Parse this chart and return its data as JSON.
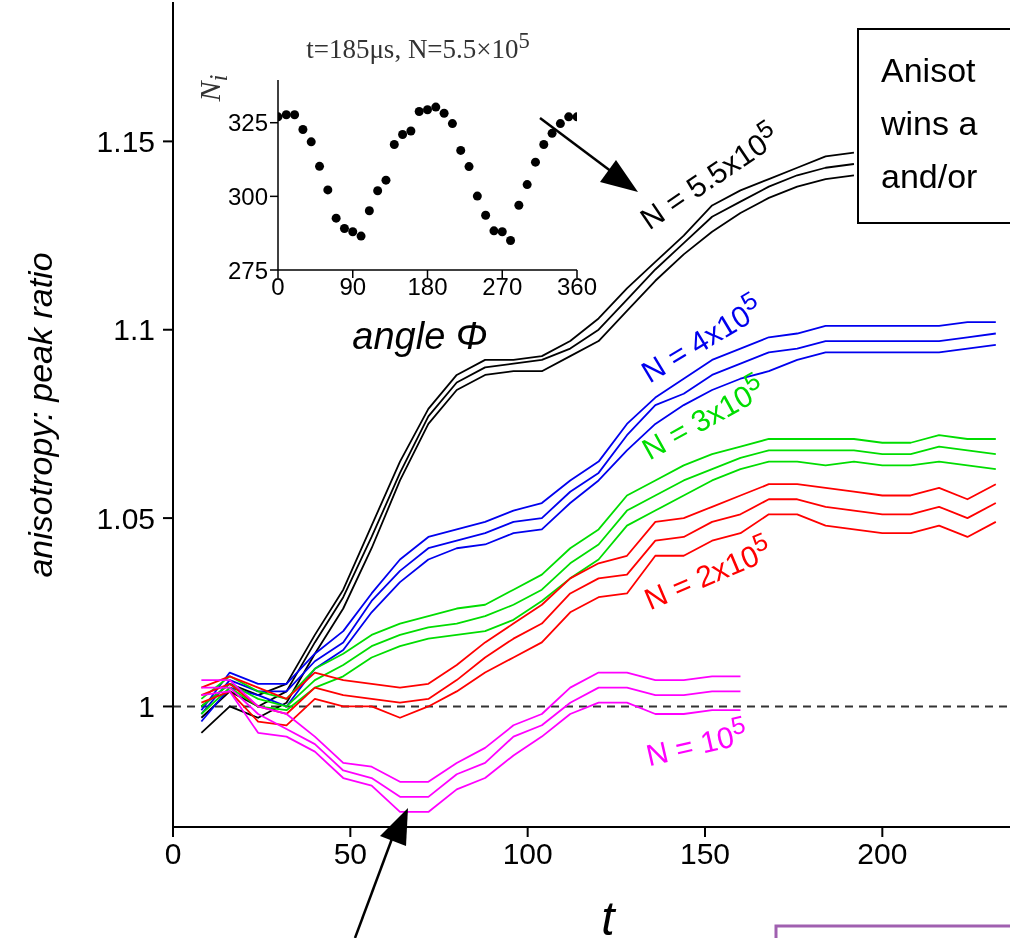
{
  "chart_data": [
    {
      "type": "line",
      "xlabel": "t",
      "ylabel": "anisotropy: peak ratio",
      "x": [
        8,
        16,
        24,
        32,
        40,
        48,
        56,
        64,
        72,
        80,
        88,
        96,
        104,
        112,
        120,
        128,
        136,
        144,
        152,
        160,
        168,
        176,
        184,
        192,
        200,
        208,
        216,
        224,
        232
      ],
      "xlim": [
        0,
        236
      ],
      "xticks": [
        0,
        50,
        100,
        150,
        200
      ],
      "ylim": [
        0.968,
        1.187
      ],
      "yticks": [
        1,
        1.05,
        1.1,
        1.15
      ],
      "marker": "none",
      "series": [
        {
          "color": "#000000",
          "values": [
            1.0,
            1.006,
            1.003,
            1.006,
            1.019,
            1.031,
            1.048,
            1.065,
            1.079,
            1.088,
            1.092,
            1.092,
            1.093,
            1.097,
            1.103,
            1.111,
            1.118,
            1.125,
            1.133,
            1.137,
            1.14,
            1.143,
            1.146,
            1.147,
            null,
            null,
            null,
            null,
            null
          ]
        },
        {
          "name": "N = 5.5x10$^{5}$",
          "color": "#000000",
          "values": [
            0.997,
            1.004,
            1.0,
            1.004,
            1.017,
            1.029,
            1.045,
            1.062,
            1.077,
            1.086,
            1.09,
            1.091,
            1.092,
            1.095,
            1.1,
            1.108,
            1.116,
            1.123,
            1.13,
            1.134,
            1.138,
            1.141,
            1.143,
            1.144,
            null,
            null,
            null,
            null,
            null
          ]
        },
        {
          "color": "#000000",
          "values": [
            0.993,
            1.0,
            0.997,
            1.001,
            1.014,
            1.026,
            1.042,
            1.06,
            1.075,
            1.084,
            1.088,
            1.089,
            1.089,
            1.093,
            1.097,
            1.105,
            1.113,
            1.12,
            1.126,
            1.131,
            1.135,
            1.138,
            1.14,
            1.141,
            null,
            null,
            null,
            null,
            null
          ]
        },
        {
          "color": "#0000ee",
          "values": [
            0.999,
            1.009,
            1.006,
            1.006,
            1.014,
            1.02,
            1.03,
            1.039,
            1.045,
            1.047,
            1.049,
            1.052,
            1.054,
            1.06,
            1.065,
            1.075,
            1.082,
            1.087,
            1.092,
            1.095,
            1.098,
            1.099,
            1.101,
            1.101,
            1.101,
            1.101,
            1.101,
            1.102,
            1.102
          ]
        },
        {
          "name": "N = 4x10$^{5}$",
          "color": "#0000ee",
          "values": [
            0.998,
            1.007,
            1.004,
            1.004,
            1.012,
            1.017,
            1.028,
            1.036,
            1.042,
            1.044,
            1.046,
            1.049,
            1.05,
            1.057,
            1.062,
            1.072,
            1.08,
            1.083,
            1.088,
            1.091,
            1.094,
            1.095,
            1.097,
            1.097,
            1.097,
            1.097,
            1.097,
            1.098,
            1.099
          ]
        },
        {
          "color": "#0000ee",
          "values": [
            0.996,
            1.005,
            1.003,
            1.0,
            1.01,
            1.015,
            1.025,
            1.033,
            1.039,
            1.042,
            1.043,
            1.046,
            1.047,
            1.054,
            1.06,
            1.068,
            1.075,
            1.08,
            1.084,
            1.087,
            1.089,
            1.092,
            1.094,
            1.094,
            1.094,
            1.094,
            1.094,
            1.095,
            1.096
          ]
        },
        {
          "color": "#00dd00",
          "values": [
            1.002,
            1.008,
            1.004,
            1.002,
            1.01,
            1.014,
            1.019,
            1.022,
            1.024,
            1.026,
            1.027,
            1.031,
            1.035,
            1.042,
            1.047,
            1.056,
            1.06,
            1.064,
            1.067,
            1.069,
            1.071,
            1.071,
            1.071,
            1.071,
            1.07,
            1.07,
            1.072,
            1.071,
            1.071
          ]
        },
        {
          "name": "N = 3x10$^{5}$",
          "color": "#00dd00",
          "values": [
            1.0,
            1.006,
            1.002,
            1.0,
            1.007,
            1.011,
            1.016,
            1.019,
            1.021,
            1.022,
            1.024,
            1.027,
            1.031,
            1.038,
            1.043,
            1.052,
            1.056,
            1.06,
            1.063,
            1.066,
            1.068,
            1.068,
            1.068,
            1.068,
            1.067,
            1.067,
            1.069,
            1.068,
            1.067
          ]
        },
        {
          "color": "#00dd00",
          "values": [
            0.998,
            1.005,
            1.0,
            0.999,
            1.005,
            1.008,
            1.013,
            1.016,
            1.018,
            1.019,
            1.02,
            1.023,
            1.028,
            1.034,
            1.039,
            1.048,
            1.052,
            1.056,
            1.06,
            1.063,
            1.065,
            1.065,
            1.064,
            1.065,
            1.064,
            1.064,
            1.065,
            1.064,
            1.063
          ]
        },
        {
          "color": "#ff0000",
          "values": [
            1.005,
            1.008,
            1.005,
            1.002,
            1.009,
            1.007,
            1.006,
            1.005,
            1.006,
            1.011,
            1.017,
            1.022,
            1.027,
            1.034,
            1.038,
            1.04,
            1.049,
            1.05,
            1.053,
            1.056,
            1.059,
            1.059,
            1.058,
            1.057,
            1.056,
            1.056,
            1.058,
            1.055,
            1.059
          ]
        },
        {
          "name": "N = 2x10$^{5}$",
          "color": "#ff0000",
          "values": [
            1.003,
            1.006,
            1.0,
            0.998,
            1.005,
            1.003,
            1.002,
            1.001,
            1.002,
            1.007,
            1.013,
            1.018,
            1.022,
            1.03,
            1.034,
            1.035,
            1.044,
            1.045,
            1.049,
            1.051,
            1.055,
            1.055,
            1.053,
            1.052,
            1.051,
            1.051,
            1.053,
            1.05,
            1.054
          ]
        },
        {
          "color": "#ff0000",
          "values": [
            1.001,
            1.004,
            0.996,
            0.995,
            1.002,
            1.0,
            1.0,
            0.997,
            1.0,
            1.004,
            1.009,
            1.013,
            1.017,
            1.025,
            1.029,
            1.03,
            1.04,
            1.04,
            1.044,
            1.046,
            1.051,
            1.051,
            1.048,
            1.047,
            1.046,
            1.046,
            1.048,
            1.045,
            1.049
          ]
        },
        {
          "color": "#ff00ff",
          "values": [
            1.007,
            1.007,
            1.0,
            0.998,
            0.992,
            0.985,
            0.984,
            0.98,
            0.98,
            0.985,
            0.989,
            0.995,
            0.998,
            1.005,
            1.009,
            1.009,
            1.007,
            1.007,
            1.008,
            1.008,
            null,
            null,
            null,
            null,
            null,
            null,
            null,
            null,
            null
          ]
        },
        {
          "name": "N = 10$^{5}$",
          "color": "#ff00ff",
          "values": [
            1.005,
            1.005,
            0.998,
            0.994,
            0.99,
            0.983,
            0.981,
            0.976,
            0.976,
            0.982,
            0.985,
            0.992,
            0.995,
            1.001,
            1.005,
            1.005,
            1.003,
            1.003,
            1.004,
            1.004,
            null,
            null,
            null,
            null,
            null,
            null,
            null,
            null,
            null
          ]
        },
        {
          "color": "#ff00ff",
          "values": [
            1.003,
            1.004,
            0.993,
            0.992,
            0.988,
            0.981,
            0.979,
            0.972,
            0.972,
            0.978,
            0.981,
            0.987,
            0.992,
            0.998,
            1.001,
            1.001,
            0.998,
            0.998,
            0.999,
            0.999,
            null,
            null,
            null,
            null,
            null,
            null,
            null,
            null,
            null
          ]
        }
      ],
      "ref_lines": [
        {
          "axis": "y",
          "value": 1,
          "color": "#333333",
          "line_style": "dashed"
        }
      ],
      "annotations": [
        "Anisot\nwins a\nand/or"
      ]
    },
    {
      "type": "scatter",
      "title": "t=185μs, N=5.5×10$^{5}$",
      "xlabel": "angle Φ",
      "ylabel": "N$_{i}$",
      "x": [
        0,
        10,
        20,
        30,
        40,
        50,
        60,
        70,
        80,
        90,
        100,
        110,
        120,
        130,
        140,
        150,
        160,
        170,
        180,
        190,
        200,
        210,
        220,
        230,
        240,
        250,
        260,
        270,
        280,
        290,
        300,
        310,
        320,
        330,
        340,
        350,
        360
      ],
      "values": [
        327.0,
        327.7,
        327.7,
        322.7,
        318.5,
        310.2,
        302.2,
        292.6,
        289.1,
        288.0,
        286.5,
        295.1,
        301.9,
        305.5,
        317.6,
        321.0,
        322.2,
        328.8,
        329.4,
        330.3,
        328.2,
        324.7,
        315.6,
        310.1,
        300.1,
        293.6,
        288.3,
        288.0,
        285.0,
        297.0,
        304.0,
        311.6,
        317.6,
        321.4,
        324.7,
        327.0,
        327.0
      ],
      "color": "#000000",
      "marker": "circle",
      "xlim": [
        0,
        360
      ],
      "xticks": [
        0,
        90,
        180,
        270,
        360
      ],
      "ylim": [
        275,
        339.5
      ],
      "yticks": [
        275,
        300,
        325
      ]
    }
  ]
}
